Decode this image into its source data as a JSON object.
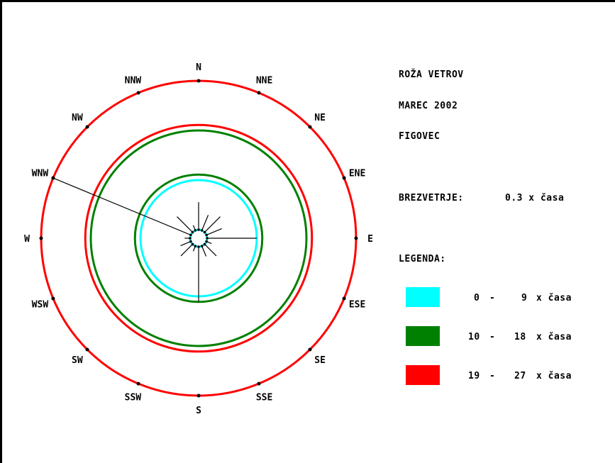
{
  "chart_data": {
    "type": "wind-rose",
    "directions": [
      "N",
      "NNE",
      "NE",
      "ENE",
      "E",
      "ESE",
      "SE",
      "SSE",
      "S",
      "SSW",
      "SW",
      "WSW",
      "W",
      "WNW",
      "NW",
      "NNW"
    ],
    "values": [
      5,
      3,
      4,
      3,
      9,
      1,
      3,
      2,
      10,
      1,
      3,
      2,
      1,
      27,
      4,
      1
    ],
    "calm_value": 0.3,
    "rings": [
      {
        "name": "0 - 9",
        "color": "#00ffff",
        "value": 9
      },
      {
        "name": "10 - 18",
        "color": "#008000",
        "value": 10
      },
      {
        "name": "19 - 27",
        "color": "#ff0000",
        "value": 19
      },
      {
        "name": "10 - 18",
        "color": "#008000",
        "value": 18
      },
      {
        "name": "19 - 27",
        "color": "#ff0000",
        "value": 27
      }
    ]
  },
  "info": {
    "title": "ROŽA VETROV",
    "period": "MAREC 2002",
    "location": "FIGOVEC",
    "calm_label": "BREZVETRJE:",
    "calm_value_text": "0.3 x časa",
    "legend_title": "LEGENDA:"
  },
  "legend": [
    {
      "from": "0",
      "to": "9",
      "unit": "x časa",
      "color": "#00ffff"
    },
    {
      "from": "10",
      "to": "18",
      "unit": "x časa",
      "color": "#008000"
    },
    {
      "from": "19",
      "to": "27",
      "unit": "x časa",
      "color": "#ff0000"
    }
  ]
}
